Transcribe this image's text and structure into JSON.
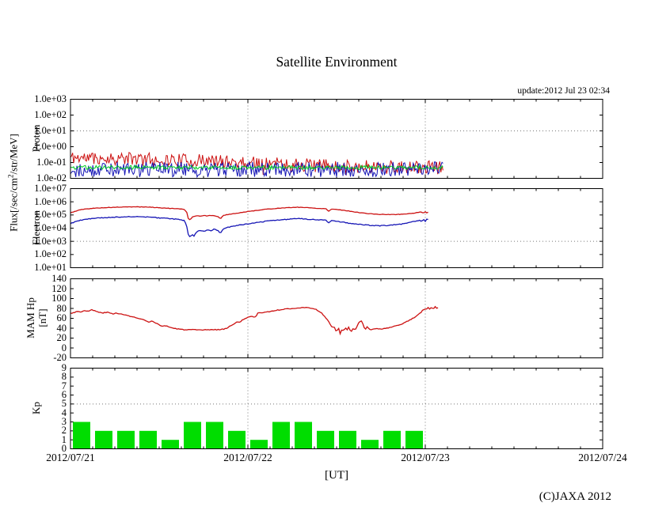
{
  "title": "Satellite Environment",
  "update_text": "update:2012 Jul 23 02:34",
  "copyright": "(C)JAXA 2012",
  "flux_axis_label": {
    "pre": "Flux[/sec/cm",
    "sup": "2",
    "post": "/str/MeV]"
  },
  "x_axis": {
    "label": "[UT]",
    "tick_labels": [
      "2012/07/21",
      "2012/07/22",
      "2012/07/23",
      "2012/07/24"
    ],
    "tick_days": [
      0,
      1,
      2,
      3
    ],
    "range_days": [
      0,
      3
    ],
    "minor_tick_hours": 3,
    "grid_days": [
      1,
      2
    ]
  },
  "colors": {
    "red": "#cc1111",
    "blue": "#1515b5",
    "green": "#00cc22",
    "kp_green": "#00dd00",
    "grid": "#777777",
    "frame": "#000000"
  },
  "chart_data": [
    {
      "id": "proton",
      "type": "noisy",
      "scale": "log",
      "ylabel": "Proton",
      "ymin": -2,
      "ymax": 3,
      "ytick_values": [
        3,
        2,
        1,
        0,
        -1,
        -2
      ],
      "ytick_labels": [
        "1.0e+03",
        "1.0e+02",
        "1.0e+01",
        "1.0e+00",
        "1.0e-01",
        "1.0e-02"
      ],
      "grid_y": [
        1
      ],
      "x_end_day": 2.1,
      "series": [
        {
          "name": "proton-flux-high",
          "color": "#cc1111",
          "seed": 11,
          "noise_dex": 0.42,
          "x": [
            0,
            0.3,
            0.6,
            0.9,
            1.2,
            1.5,
            1.8,
            2.1
          ],
          "center_log": [
            -0.68,
            -0.75,
            -0.85,
            -0.95,
            -1.1,
            -1.2,
            -1.3,
            -1.32
          ]
        },
        {
          "name": "proton-flux-low",
          "color": "#1515b5",
          "seed": 29,
          "noise_dex": 0.48,
          "x": [
            0,
            2.1
          ],
          "center_log": [
            -1.44,
            -1.44
          ]
        },
        {
          "name": "proton-flux-mid",
          "color": "#00cc22",
          "seed": 47,
          "noise_dex": 0.12,
          "x": [
            0,
            2.1
          ],
          "center_log": [
            -1.31,
            -1.31
          ]
        }
      ]
    },
    {
      "id": "electron",
      "type": "line",
      "scale": "log",
      "ylabel": "Electron",
      "ymin": 1,
      "ymax": 7,
      "ytick_values": [
        7,
        6,
        5,
        4,
        3,
        2,
        1
      ],
      "ytick_labels": [
        "1.0e+07",
        "1.0e+06",
        "1.0e+05",
        "1.0e+04",
        "1.0e+03",
        "1.0e+02",
        "1.0e+01"
      ],
      "grid_y": [
        3
      ],
      "series": [
        {
          "name": "electron-flux-high",
          "color": "#cc1111",
          "seed": 5,
          "jitter": 0.018,
          "points": [
            [
              0,
              5.16
            ],
            [
              0.02,
              5.25
            ],
            [
              0.05,
              5.38
            ],
            [
              0.09,
              5.46
            ],
            [
              0.14,
              5.52
            ],
            [
              0.2,
              5.56
            ],
            [
              0.26,
              5.59
            ],
            [
              0.32,
              5.61
            ],
            [
              0.38,
              5.62
            ],
            [
              0.44,
              5.6
            ],
            [
              0.5,
              5.55
            ],
            [
              0.56,
              5.5
            ],
            [
              0.61,
              5.46
            ],
            [
              0.64,
              5.42
            ],
            [
              0.655,
              5.25
            ],
            [
              0.665,
              4.68
            ],
            [
              0.675,
              4.65
            ],
            [
              0.69,
              4.88
            ],
            [
              0.71,
              4.95
            ],
            [
              0.73,
              4.9
            ],
            [
              0.75,
              4.97
            ],
            [
              0.77,
              4.92
            ],
            [
              0.79,
              4.97
            ],
            [
              0.81,
              4.93
            ],
            [
              0.83,
              4.9
            ],
            [
              0.845,
              4.72
            ],
            [
              0.86,
              4.95
            ],
            [
              0.88,
              5.02
            ],
            [
              0.91,
              5.08
            ],
            [
              0.95,
              5.16
            ],
            [
              1,
              5.26
            ],
            [
              1.05,
              5.35
            ],
            [
              1.1,
              5.43
            ],
            [
              1.16,
              5.5
            ],
            [
              1.22,
              5.55
            ],
            [
              1.28,
              5.59
            ],
            [
              1.32,
              5.57
            ],
            [
              1.36,
              5.53
            ],
            [
              1.4,
              5.5
            ],
            [
              1.44,
              5.48
            ],
            [
              1.455,
              5.28
            ],
            [
              1.47,
              5.45
            ],
            [
              1.5,
              5.42
            ],
            [
              1.54,
              5.36
            ],
            [
              1.58,
              5.28
            ],
            [
              1.63,
              5.18
            ],
            [
              1.68,
              5.1
            ],
            [
              1.74,
              5.05
            ],
            [
              1.8,
              5.03
            ],
            [
              1.86,
              5.05
            ],
            [
              1.91,
              5.1
            ],
            [
              1.95,
              5.17
            ],
            [
              1.975,
              5.22
            ],
            [
              1.99,
              5.14
            ],
            [
              2,
              5.26
            ],
            [
              2.01,
              5.16
            ],
            [
              2.02,
              5.24
            ]
          ]
        },
        {
          "name": "electron-flux-low",
          "color": "#1515b5",
          "seed": 9,
          "jitter": 0.03,
          "points": [
            [
              0,
              4.35
            ],
            [
              0.02,
              4.45
            ],
            [
              0.05,
              4.58
            ],
            [
              0.09,
              4.68
            ],
            [
              0.14,
              4.75
            ],
            [
              0.2,
              4.8
            ],
            [
              0.26,
              4.84
            ],
            [
              0.32,
              4.86
            ],
            [
              0.38,
              4.87
            ],
            [
              0.44,
              4.84
            ],
            [
              0.5,
              4.78
            ],
            [
              0.56,
              4.72
            ],
            [
              0.61,
              4.66
            ],
            [
              0.64,
              4.58
            ],
            [
              0.655,
              4.2
            ],
            [
              0.665,
              3.45
            ],
            [
              0.675,
              3.32
            ],
            [
              0.685,
              3.55
            ],
            [
              0.695,
              3.38
            ],
            [
              0.71,
              3.72
            ],
            [
              0.73,
              3.82
            ],
            [
              0.75,
              3.74
            ],
            [
              0.77,
              3.88
            ],
            [
              0.79,
              3.8
            ],
            [
              0.81,
              3.92
            ],
            [
              0.83,
              3.85
            ],
            [
              0.845,
              3.62
            ],
            [
              0.86,
              3.95
            ],
            [
              0.88,
              4.05
            ],
            [
              0.91,
              4.12
            ],
            [
              0.95,
              4.22
            ],
            [
              1,
              4.32
            ],
            [
              1.05,
              4.42
            ],
            [
              1.1,
              4.52
            ],
            [
              1.16,
              4.6
            ],
            [
              1.22,
              4.67
            ],
            [
              1.28,
              4.74
            ],
            [
              1.32,
              4.7
            ],
            [
              1.36,
              4.66
            ],
            [
              1.4,
              4.63
            ],
            [
              1.44,
              4.6
            ],
            [
              1.455,
              4.42
            ],
            [
              1.47,
              4.58
            ],
            [
              1.5,
              4.52
            ],
            [
              1.54,
              4.44
            ],
            [
              1.58,
              4.36
            ],
            [
              1.63,
              4.28
            ],
            [
              1.68,
              4.22
            ],
            [
              1.74,
              4.18
            ],
            [
              1.8,
              4.22
            ],
            [
              1.86,
              4.3
            ],
            [
              1.91,
              4.42
            ],
            [
              1.95,
              4.55
            ],
            [
              1.97,
              4.62
            ],
            [
              1.98,
              4.45
            ],
            [
              1.99,
              4.72
            ],
            [
              2,
              4.5
            ],
            [
              2.01,
              4.74
            ],
            [
              2.02,
              4.6
            ]
          ]
        }
      ]
    },
    {
      "id": "hp",
      "type": "line",
      "scale": "linear",
      "ylabel": "MAM Hp",
      "ylabel2": "[nT]",
      "ymin": -20,
      "ymax": 140,
      "ytick_values": [
        140,
        120,
        100,
        80,
        60,
        40,
        20,
        0,
        -20
      ],
      "ytick_labels": [
        "140",
        "120",
        "100",
        "80",
        "60",
        "40",
        "20",
        "0",
        "-20"
      ],
      "grid_y": [],
      "series": [
        {
          "name": "mam-hp",
          "color": "#cc1111",
          "seed": 3,
          "jitter": 0.8,
          "points": [
            [
              0,
              70
            ],
            [
              0.02,
              72
            ],
            [
              0.04,
              74
            ],
            [
              0.06,
              73
            ],
            [
              0.08,
              76
            ],
            [
              0.1,
              74
            ],
            [
              0.12,
              77
            ],
            [
              0.14,
              75
            ],
            [
              0.16,
              72
            ],
            [
              0.18,
              71
            ],
            [
              0.21,
              72
            ],
            [
              0.24,
              69
            ],
            [
              0.26,
              71
            ],
            [
              0.28,
              69
            ],
            [
              0.3,
              67
            ],
            [
              0.33,
              65
            ],
            [
              0.36,
              62
            ],
            [
              0.39,
              59
            ],
            [
              0.42,
              56
            ],
            [
              0.44,
              52
            ],
            [
              0.46,
              54
            ],
            [
              0.48,
              50
            ],
            [
              0.5,
              47
            ],
            [
              0.52,
              44
            ],
            [
              0.54,
              45
            ],
            [
              0.56,
              42
            ],
            [
              0.58,
              40
            ],
            [
              0.61,
              38
            ],
            [
              0.64,
              37
            ],
            [
              0.68,
              37
            ],
            [
              0.73,
              36
            ],
            [
              0.78,
              37
            ],
            [
              0.83,
              37
            ],
            [
              0.86,
              38
            ],
            [
              0.88,
              40
            ],
            [
              0.9,
              44
            ],
            [
              0.92,
              49
            ],
            [
              0.94,
              53
            ],
            [
              0.955,
              51
            ],
            [
              0.97,
              57
            ],
            [
              0.985,
              60
            ],
            [
              1,
              62
            ],
            [
              1.02,
              64
            ],
            [
              1.04,
              62
            ],
            [
              1.05,
              67
            ],
            [
              1.06,
              72
            ],
            [
              1.08,
              71
            ],
            [
              1.1,
              73
            ],
            [
              1.13,
              74
            ],
            [
              1.16,
              76
            ],
            [
              1.19,
              78
            ],
            [
              1.22,
              79
            ],
            [
              1.25,
              80
            ],
            [
              1.28,
              81
            ],
            [
              1.31,
              82
            ],
            [
              1.34,
              81
            ],
            [
              1.37,
              80
            ],
            [
              1.39,
              77
            ],
            [
              1.41,
              72
            ],
            [
              1.43,
              65
            ],
            [
              1.45,
              56
            ],
            [
              1.465,
              48
            ],
            [
              1.475,
              40
            ],
            [
              1.485,
              45
            ],
            [
              1.5,
              32
            ],
            [
              1.51,
              42
            ],
            [
              1.52,
              28
            ],
            [
              1.53,
              38
            ],
            [
              1.54,
              34
            ],
            [
              1.55,
              41
            ],
            [
              1.56,
              36
            ],
            [
              1.57,
              43
            ],
            [
              1.58,
              31
            ],
            [
              1.59,
              39
            ],
            [
              1.605,
              36
            ],
            [
              1.615,
              44
            ],
            [
              1.625,
              52
            ],
            [
              1.64,
              55
            ],
            [
              1.65,
              47
            ],
            [
              1.66,
              36
            ],
            [
              1.67,
              43
            ],
            [
              1.685,
              38
            ],
            [
              1.7,
              37
            ],
            [
              1.72,
              39
            ],
            [
              1.75,
              38
            ],
            [
              1.78,
              40
            ],
            [
              1.81,
              42
            ],
            [
              1.84,
              45
            ],
            [
              1.87,
              49
            ],
            [
              1.9,
              54
            ],
            [
              1.92,
              58
            ],
            [
              1.94,
              62
            ],
            [
              1.96,
              67
            ],
            [
              1.975,
              72
            ],
            [
              1.985,
              76
            ],
            [
              1.995,
              79
            ],
            [
              2.005,
              77
            ],
            [
              2.015,
              82
            ],
            [
              2.025,
              78
            ],
            [
              2.035,
              83
            ],
            [
              2.045,
              79
            ],
            [
              2.055,
              84
            ],
            [
              2.065,
              80
            ],
            [
              2.075,
              82
            ]
          ]
        }
      ]
    },
    {
      "id": "kp",
      "type": "bar",
      "scale": "linear",
      "ylabel": "Kp",
      "ymin": 0,
      "ymax": 9,
      "ytick_values": [
        9,
        8,
        7,
        6,
        5,
        4,
        3,
        2,
        1,
        0
      ],
      "ytick_labels": [
        "9",
        "8",
        "7",
        "6",
        "5",
        "4",
        "3",
        "2",
        "1",
        "0"
      ],
      "grid_y": [
        5
      ],
      "bar_start_day": 0,
      "bar_hours": 3,
      "values": [
        3,
        2,
        2,
        2,
        1,
        3,
        3,
        2,
        1,
        3,
        3,
        2,
        2,
        1,
        2,
        2
      ],
      "color": "#00dd00"
    }
  ]
}
